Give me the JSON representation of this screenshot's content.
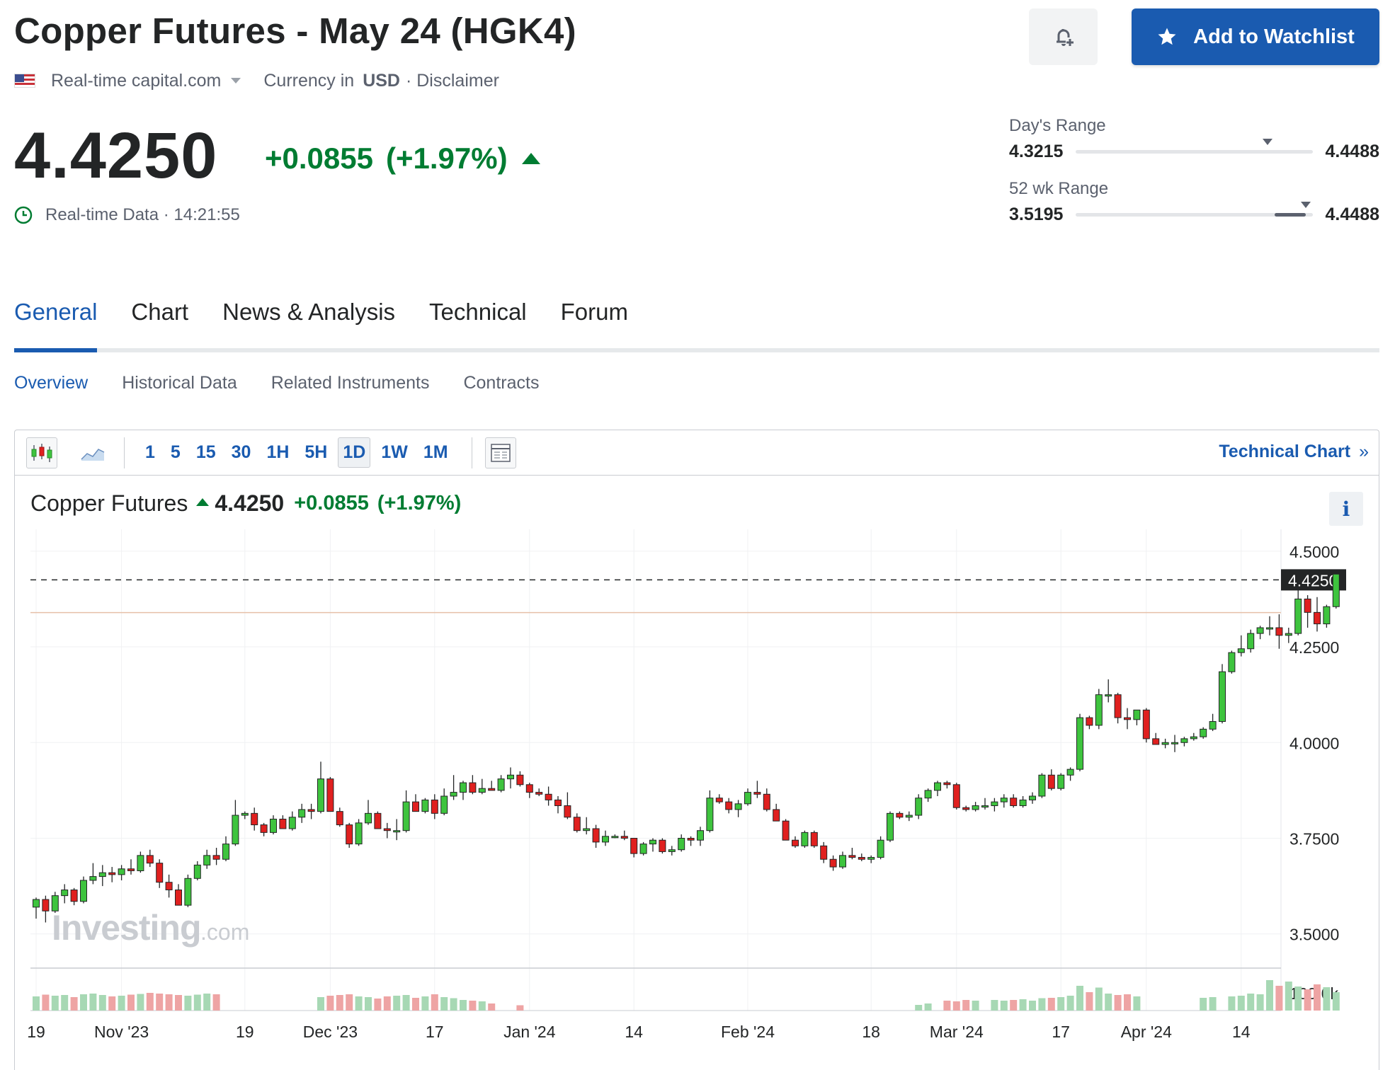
{
  "header": {
    "title": "Copper Futures - May 24 (HGK4)",
    "source": "Real-time capital.com",
    "currency_label": "Currency in",
    "currency": "USD",
    "disclaimer": "· Disclaimer",
    "watchlist_label": "Add to Watchlist"
  },
  "quote": {
    "price": "4.4250",
    "change": "+0.0855",
    "change_pct": "(+1.97%)",
    "realtime_label": "Real-time Data · 14:21:55"
  },
  "ranges": {
    "day": {
      "label": "Day's Range",
      "low": "4.3215",
      "high": "4.4488",
      "marker_fraction": 0.81
    },
    "week52": {
      "label": "52 wk Range",
      "low": "3.5195",
      "high": "4.4488",
      "marker_fraction": 0.97
    }
  },
  "tabs": [
    "General",
    "Chart",
    "News & Analysis",
    "Technical",
    "Forum"
  ],
  "subtabs": [
    "Overview",
    "Historical Data",
    "Related Instruments",
    "Contracts"
  ],
  "toolbar": {
    "intervals": [
      "1",
      "5",
      "15",
      "30",
      "1H",
      "5H",
      "1D",
      "1W",
      "1M"
    ],
    "active_interval": "1D",
    "technical_chart_label": "Technical Chart"
  },
  "colors": {
    "accent": "#1a5bb0",
    "up": "#007c32",
    "candle_up": "#3ec43e",
    "candle_down": "#e0201f"
  },
  "chart_data": {
    "type": "candlestick",
    "legend": {
      "name": "Copper Futures",
      "price": "4.4250",
      "change": "+0.0855",
      "change_pct": "(+1.97%)"
    },
    "ylim": [
      3.42,
      4.52
    ],
    "y_ticks": [
      "4.5000",
      "4.2500",
      "4.0000",
      "3.7500",
      "3.5000"
    ],
    "volume_tick": "100.0k",
    "last_price_label": "4.4250",
    "last_price": 4.425,
    "prev_close": 4.3395,
    "x_ticks": [
      {
        "label": "19",
        "i": 0
      },
      {
        "label": "Nov '23",
        "i": 9
      },
      {
        "label": "19",
        "i": 22
      },
      {
        "label": "Dec '23",
        "i": 31
      },
      {
        "label": "17",
        "i": 42
      },
      {
        "label": "Jan '24",
        "i": 52
      },
      {
        "label": "14",
        "i": 63
      },
      {
        "label": "Feb '24",
        "i": 75
      },
      {
        "label": "18",
        "i": 88
      },
      {
        "label": "Mar '24",
        "i": 97
      },
      {
        "label": "17",
        "i": 108
      },
      {
        "label": "Apr '24",
        "i": 117
      },
      {
        "label": "14",
        "i": 127
      }
    ],
    "watermark": {
      "text1": "Investing",
      "text2": ".com"
    },
    "candles": [
      [
        3.57,
        3.595,
        3.54,
        3.59
      ],
      [
        3.59,
        3.6,
        3.53,
        3.56
      ],
      [
        3.56,
        3.61,
        3.555,
        3.6
      ],
      [
        3.6,
        3.63,
        3.58,
        3.615
      ],
      [
        3.615,
        3.62,
        3.575,
        3.585
      ],
      [
        3.585,
        3.65,
        3.58,
        3.64
      ],
      [
        3.64,
        3.685,
        3.63,
        3.65
      ],
      [
        3.65,
        3.68,
        3.625,
        3.66
      ],
      [
        3.66,
        3.675,
        3.635,
        3.655
      ],
      [
        3.655,
        3.68,
        3.64,
        3.67
      ],
      [
        3.67,
        3.695,
        3.655,
        3.665
      ],
      [
        3.665,
        3.715,
        3.66,
        3.705
      ],
      [
        3.705,
        3.72,
        3.675,
        3.685
      ],
      [
        3.685,
        3.695,
        3.62,
        3.635
      ],
      [
        3.635,
        3.655,
        3.595,
        3.615
      ],
      [
        3.615,
        3.63,
        3.575,
        3.575
      ],
      [
        3.575,
        3.655,
        3.57,
        3.645
      ],
      [
        3.645,
        3.69,
        3.64,
        3.68
      ],
      [
        3.68,
        3.72,
        3.67,
        3.705
      ],
      [
        3.705,
        3.725,
        3.68,
        3.695
      ],
      [
        3.695,
        3.755,
        3.69,
        3.735
      ],
      [
        3.735,
        3.85,
        3.73,
        3.81
      ],
      [
        3.81,
        3.82,
        3.8,
        3.815
      ],
      [
        3.815,
        3.83,
        3.77,
        3.785
      ],
      [
        3.785,
        3.79,
        3.755,
        3.765
      ],
      [
        3.765,
        3.81,
        3.76,
        3.8
      ],
      [
        3.8,
        3.81,
        3.775,
        3.775
      ],
      [
        3.775,
        3.82,
        3.77,
        3.805
      ],
      [
        3.805,
        3.84,
        3.79,
        3.825
      ],
      [
        3.825,
        3.84,
        3.8,
        3.82
      ],
      [
        3.82,
        3.95,
        3.815,
        3.905
      ],
      [
        3.905,
        3.91,
        3.82,
        3.82
      ],
      [
        3.82,
        3.83,
        3.78,
        3.785
      ],
      [
        3.785,
        3.79,
        3.725,
        3.735
      ],
      [
        3.735,
        3.8,
        3.73,
        3.79
      ],
      [
        3.79,
        3.85,
        3.785,
        3.815
      ],
      [
        3.815,
        3.82,
        3.775,
        3.775
      ],
      [
        3.775,
        3.79,
        3.75,
        3.77
      ],
      [
        3.77,
        3.8,
        3.745,
        3.77
      ],
      [
        3.77,
        3.875,
        3.765,
        3.845
      ],
      [
        3.845,
        3.865,
        3.82,
        3.82
      ],
      [
        3.82,
        3.855,
        3.815,
        3.85
      ],
      [
        3.85,
        3.865,
        3.8,
        3.815
      ],
      [
        3.815,
        3.88,
        3.81,
        3.86
      ],
      [
        3.86,
        3.915,
        3.85,
        3.87
      ],
      [
        3.87,
        3.9,
        3.85,
        3.895
      ],
      [
        3.895,
        3.915,
        3.865,
        3.87
      ],
      [
        3.87,
        3.905,
        3.865,
        3.88
      ],
      [
        3.88,
        3.9,
        3.875,
        3.875
      ],
      [
        3.875,
        3.915,
        3.87,
        3.905
      ],
      [
        3.905,
        3.935,
        3.88,
        3.915
      ],
      [
        3.915,
        3.925,
        3.885,
        3.89
      ],
      [
        3.89,
        3.895,
        3.855,
        3.87
      ],
      [
        3.87,
        3.88,
        3.86,
        3.865
      ],
      [
        3.865,
        3.885,
        3.835,
        3.85
      ],
      [
        3.85,
        3.86,
        3.815,
        3.835
      ],
      [
        3.835,
        3.87,
        3.8,
        3.805
      ],
      [
        3.805,
        3.815,
        3.765,
        3.77
      ],
      [
        3.77,
        3.805,
        3.76,
        3.775
      ],
      [
        3.775,
        3.785,
        3.725,
        3.74
      ],
      [
        3.74,
        3.77,
        3.73,
        3.755
      ],
      [
        3.755,
        3.76,
        3.75,
        3.755
      ],
      [
        3.755,
        3.77,
        3.745,
        3.75
      ],
      [
        3.75,
        3.75,
        3.7,
        3.71
      ],
      [
        3.71,
        3.74,
        3.705,
        3.735
      ],
      [
        3.735,
        3.75,
        3.715,
        3.745
      ],
      [
        3.745,
        3.75,
        3.71,
        3.715
      ],
      [
        3.715,
        3.73,
        3.705,
        3.72
      ],
      [
        3.72,
        3.76,
        3.715,
        3.75
      ],
      [
        3.75,
        3.755,
        3.73,
        3.745
      ],
      [
        3.745,
        3.78,
        3.73,
        3.77
      ],
      [
        3.77,
        3.875,
        3.765,
        3.855
      ],
      [
        3.855,
        3.865,
        3.84,
        3.845
      ],
      [
        3.845,
        3.855,
        3.815,
        3.825
      ],
      [
        3.825,
        3.85,
        3.805,
        3.84
      ],
      [
        3.84,
        3.88,
        3.835,
        3.87
      ],
      [
        3.87,
        3.9,
        3.855,
        3.865
      ],
      [
        3.865,
        3.88,
        3.82,
        3.825
      ],
      [
        3.825,
        3.84,
        3.795,
        3.795
      ],
      [
        3.795,
        3.8,
        3.745,
        3.745
      ],
      [
        3.745,
        3.755,
        3.725,
        3.73
      ],
      [
        3.73,
        3.77,
        3.725,
        3.765
      ],
      [
        3.765,
        3.77,
        3.725,
        3.73
      ],
      [
        3.73,
        3.74,
        3.685,
        3.695
      ],
      [
        3.695,
        3.705,
        3.665,
        3.675
      ],
      [
        3.675,
        3.715,
        3.67,
        3.705
      ],
      [
        3.705,
        3.725,
        3.695,
        3.7
      ],
      [
        3.7,
        3.71,
        3.69,
        3.695
      ],
      [
        3.695,
        3.705,
        3.685,
        3.7
      ],
      [
        3.7,
        3.755,
        3.695,
        3.745
      ],
      [
        3.745,
        3.82,
        3.74,
        3.815
      ],
      [
        3.815,
        3.82,
        3.8,
        3.805
      ],
      [
        3.805,
        3.82,
        3.795,
        3.81
      ],
      [
        3.81,
        3.865,
        3.8,
        3.855
      ],
      [
        3.855,
        3.88,
        3.845,
        3.875
      ],
      [
        3.875,
        3.9,
        3.86,
        3.895
      ],
      [
        3.895,
        3.9,
        3.88,
        3.89
      ],
      [
        3.89,
        3.895,
        3.825,
        3.83
      ],
      [
        3.83,
        3.835,
        3.82,
        3.825
      ],
      [
        3.825,
        3.845,
        3.82,
        3.835
      ],
      [
        3.835,
        3.855,
        3.825,
        3.835
      ],
      [
        3.835,
        3.855,
        3.82,
        3.845
      ],
      [
        3.845,
        3.865,
        3.83,
        3.855
      ],
      [
        3.855,
        3.865,
        3.83,
        3.835
      ],
      [
        3.835,
        3.86,
        3.83,
        3.85
      ],
      [
        3.85,
        3.87,
        3.84,
        3.86
      ],
      [
        3.86,
        3.92,
        3.855,
        3.915
      ],
      [
        3.915,
        3.93,
        3.875,
        3.88
      ],
      [
        3.88,
        3.92,
        3.875,
        3.915
      ],
      [
        3.915,
        3.935,
        3.9,
        3.93
      ],
      [
        3.93,
        4.075,
        3.925,
        4.065
      ],
      [
        4.065,
        4.07,
        4.035,
        4.045
      ],
      [
        4.045,
        4.14,
        4.035,
        4.125
      ],
      [
        4.125,
        4.165,
        4.105,
        4.125
      ],
      [
        4.125,
        4.13,
        4.05,
        4.065
      ],
      [
        4.065,
        4.09,
        4.035,
        4.06
      ],
      [
        4.06,
        4.085,
        4.045,
        4.085
      ],
      [
        4.085,
        4.09,
        4.0,
        4.01
      ],
      [
        4.01,
        4.025,
        3.995,
        3.995
      ],
      [
        3.995,
        4.01,
        3.985,
        4.0
      ],
      [
        4.0,
        4.02,
        3.975,
        4.0
      ],
      [
        4.0,
        4.015,
        3.99,
        4.01
      ],
      [
        4.01,
        4.025,
        4.005,
        4.015
      ],
      [
        4.015,
        4.04,
        4.01,
        4.035
      ],
      [
        4.035,
        4.075,
        4.03,
        4.055
      ],
      [
        4.055,
        4.205,
        4.05,
        4.185
      ],
      [
        4.185,
        4.24,
        4.18,
        4.235
      ],
      [
        4.235,
        4.28,
        4.225,
        4.245
      ],
      [
        4.245,
        4.295,
        4.235,
        4.285
      ],
      [
        4.285,
        4.305,
        4.27,
        4.3
      ],
      [
        4.3,
        4.33,
        4.28,
        4.3
      ],
      [
        4.3,
        4.335,
        4.245,
        4.28
      ],
      [
        4.28,
        4.3,
        4.26,
        4.285
      ],
      [
        4.285,
        4.4,
        4.28,
        4.375
      ],
      [
        4.375,
        4.385,
        4.3,
        4.34
      ],
      [
        4.34,
        4.38,
        4.29,
        4.31
      ],
      [
        4.31,
        4.36,
        4.3,
        4.355
      ],
      [
        4.355,
        4.445,
        4.35,
        4.44
      ]
    ],
    "volume_up_indices_hint": "volumes follow candle direction",
    "volumes": [
      40,
      45,
      42,
      44,
      38,
      46,
      48,
      44,
      40,
      42,
      45,
      47,
      50,
      48,
      46,
      44,
      42,
      45,
      48,
      46,
      0,
      0,
      0,
      0,
      0,
      0,
      0,
      0,
      0,
      0,
      38,
      42,
      44,
      46,
      40,
      38,
      34,
      40,
      42,
      44,
      36,
      40,
      46,
      38,
      35,
      30,
      28,
      26,
      20,
      0,
      0,
      15,
      0,
      0,
      0,
      0,
      0,
      0,
      0,
      0,
      0,
      0,
      0,
      0,
      0,
      0,
      0,
      0,
      0,
      0,
      0,
      0,
      0,
      0,
      0,
      0,
      0,
      0,
      0,
      0,
      0,
      0,
      0,
      0,
      0,
      0,
      0,
      0,
      0,
      0,
      0,
      0,
      0,
      16,
      20,
      0,
      28,
      26,
      30,
      28,
      0,
      30,
      28,
      30,
      32,
      28,
      35,
      36,
      38,
      42,
      70,
      52,
      65,
      48,
      44,
      46,
      40,
      0,
      0,
      0,
      0,
      0,
      0,
      36,
      38,
      0,
      40,
      42,
      48,
      46,
      86,
      70,
      82,
      68,
      60,
      74,
      66,
      52
    ]
  }
}
